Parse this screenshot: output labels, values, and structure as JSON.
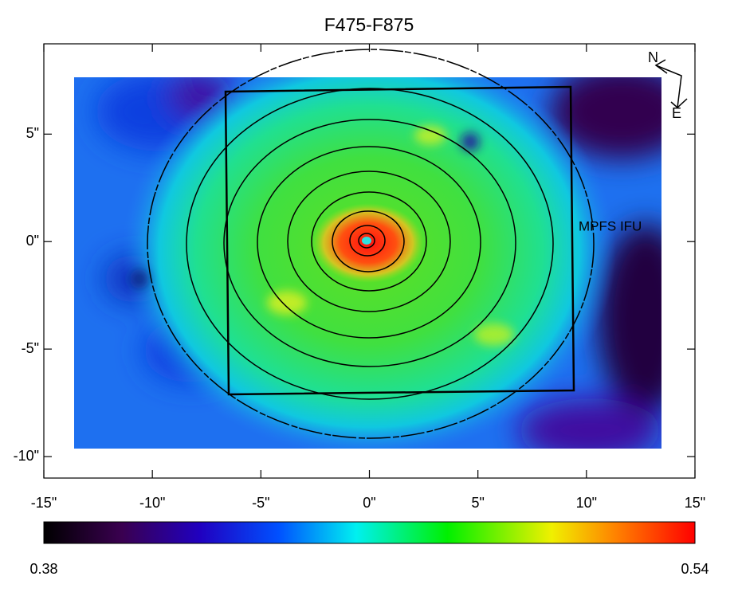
{
  "chart_data": {
    "type": "image",
    "title": "F475-F875",
    "xlim": [
      -15,
      15
    ],
    "ylim": [
      -11,
      9.2
    ],
    "xticks": [
      {
        "value": -15,
        "label": "-15\""
      },
      {
        "value": -10,
        "label": "-10\""
      },
      {
        "value": -5,
        "label": "-5\""
      },
      {
        "value": 0,
        "label": "0\""
      },
      {
        "value": 5,
        "label": "5\""
      },
      {
        "value": 10,
        "label": "10\""
      },
      {
        "value": 15,
        "label": "15\""
      }
    ],
    "yticks": [
      {
        "value": -10,
        "label": "-10\""
      },
      {
        "value": -5,
        "label": "-5\""
      },
      {
        "value": 0,
        "label": "0\""
      },
      {
        "value": 5,
        "label": "5\""
      }
    ],
    "colorbar": {
      "range": [
        0.38,
        0.54
      ]
    },
    "annotations": {
      "ifu": "MPFS IFU",
      "north": "N",
      "east": "E"
    }
  }
}
